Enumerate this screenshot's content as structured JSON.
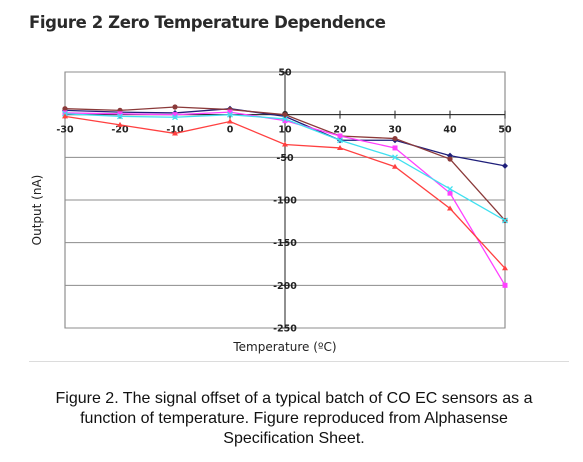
{
  "figure_title": "Figure 2 Zero Temperature Dependence",
  "caption_lines": [
    "Figure 2. The signal offset of a typical batch of CO EC sensors as a",
    "function of temperature.  Figure reproduced from Alphasense",
    "Specification Sheet."
  ],
  "chart_data": {
    "type": "line",
    "title": "",
    "xlabel": "Temperature (ºC)",
    "ylabel": "Output (nA)",
    "xlim": [
      -30,
      50
    ],
    "ylim": [
      -250,
      50
    ],
    "x_ticks": [
      -30,
      -20,
      -10,
      0,
      10,
      20,
      30,
      40,
      50
    ],
    "y_ticks": [
      50,
      0,
      -50,
      -100,
      -150,
      -200,
      -250
    ],
    "grid": true,
    "legend": "none",
    "series": [
      {
        "color": "#1f1f7a",
        "marker": "diamond",
        "x": [
          -30,
          -20,
          -10,
          0,
          10,
          20,
          30,
          40,
          50
        ],
        "y": [
          5,
          3,
          2,
          7,
          -2,
          -30,
          -30,
          -48,
          -60
        ]
      },
      {
        "color": "#8b3a3a",
        "marker": "circle",
        "x": [
          -30,
          -20,
          -10,
          0,
          10,
          20,
          30,
          40,
          50
        ],
        "y": [
          7,
          5,
          9,
          6,
          0,
          -25,
          -28,
          -52,
          -124
        ]
      },
      {
        "color": "#ff40ff",
        "marker": "square",
        "x": [
          -30,
          -20,
          -10,
          0,
          10,
          20,
          30,
          40,
          50
        ],
        "y": [
          2,
          1,
          0,
          3,
          -7,
          -25,
          -39,
          -92,
          -200
        ]
      },
      {
        "color": "#40e0f0",
        "marker": "x",
        "x": [
          -30,
          -20,
          -10,
          0,
          10,
          20,
          30,
          40,
          50
        ],
        "y": [
          1,
          -2,
          -3,
          0,
          -5,
          -30,
          -50,
          -87,
          -124
        ]
      },
      {
        "color": "#ff4040",
        "marker": "triangle",
        "x": [
          -30,
          -20,
          -10,
          0,
          10,
          20,
          30,
          40,
          50
        ],
        "y": [
          -2,
          -12,
          -22,
          -8,
          -35,
          -39,
          -61,
          -110,
          -180
        ]
      }
    ]
  }
}
